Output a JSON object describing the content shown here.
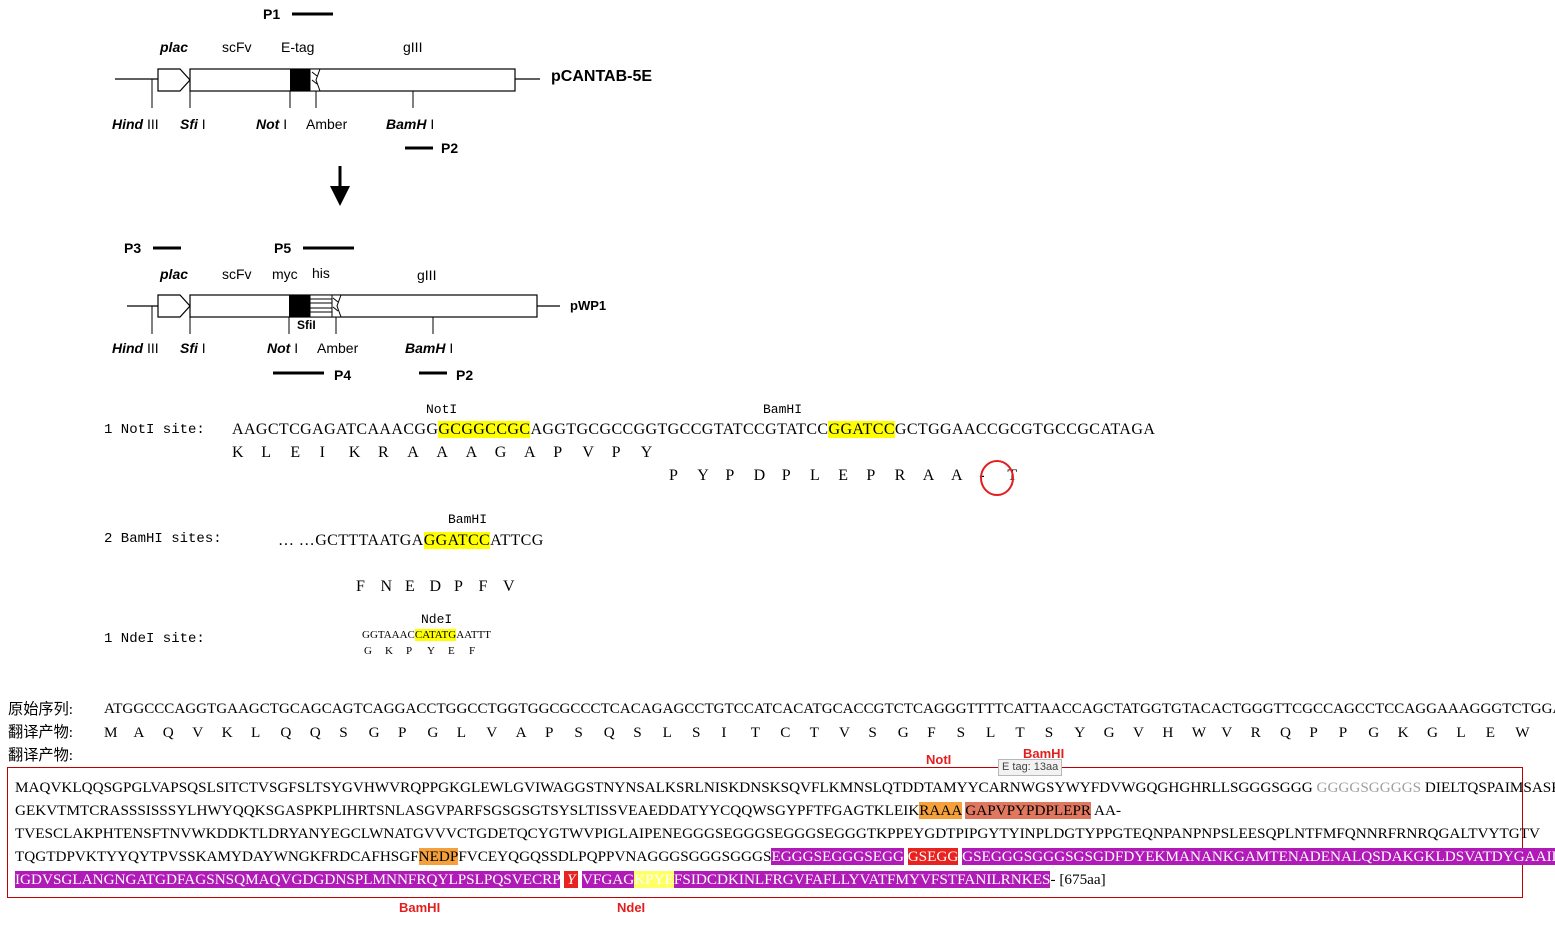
{
  "construct1": {
    "name": "pCANTAB-5E",
    "labels_top": {
      "plac": "plac",
      "scfv": "scFv",
      "etag": "E-tag",
      "g3": "gIII",
      "p1": "P1"
    },
    "labels_bottom": {
      "hind": "Hind",
      "hind_num": "III",
      "sfi": "Sfi",
      "sfi_num": "I",
      "not": "Not",
      "not_num": "I",
      "amber": "Amber",
      "bam": "BamH",
      "bam_num": "I",
      "p2": "P2"
    }
  },
  "construct2": {
    "name": "pWP1",
    "labels_top": {
      "p3": "P3",
      "p5": "P5",
      "plac": "plac",
      "scfv": "scFv",
      "myc": "myc",
      "his": "his",
      "g3": "gIII"
    },
    "labels_bottom": {
      "sfil_inside": "SfiI",
      "hind": "Hind",
      "hind_num": "III",
      "sfi": "Sfi",
      "sfi_num": "I",
      "not": "Not",
      "not_num": "I",
      "amber": "Amber",
      "bam": "BamH",
      "bam_num": "I",
      "p4": "P4",
      "p2": "P2"
    }
  },
  "sites": {
    "notl": {
      "label": "1 NotI site:",
      "enzyme1": "NotI",
      "enzyme2": "BamHI",
      "seq_pre": "AAGCTCGAGATCAAACGG",
      "seq_hl1": "GCGGCCGC",
      "seq_mid": "AGGTGCGCCGGTGCCGTATCCGTATCC",
      "seq_hl2": "GGATCC",
      "seq_post": "GCTGGAACCGCGTGCCGCATAGA",
      "aa1": [
        "K",
        "L",
        "E",
        "I",
        "K",
        "R",
        "A",
        "A",
        "A",
        "G",
        "A",
        "P",
        "V",
        "P",
        "Y"
      ],
      "aa2": [
        "P",
        "Y",
        "P",
        "D",
        "P",
        "L",
        "E",
        "P",
        "R",
        "A",
        "A",
        "-",
        "T"
      ]
    },
    "bamhi": {
      "label": "2 BamHI sites:",
      "enzyme": "BamHI",
      "seq_pre": "… …GCTTTAATGA",
      "seq_hl": "GGATCC",
      "seq_post": "ATTCG",
      "aa": [
        "F",
        "N",
        "E",
        "D",
        "P",
        "F",
        "V"
      ]
    },
    "ndel": {
      "label": "1 NdeI site:",
      "enzyme": "NdeI",
      "seq_pre": "GGTAAAC",
      "seq_hl": "CATATG",
      "seq_post": "AATTT",
      "aa": [
        "G",
        "K",
        "P",
        "Y",
        "E",
        "F"
      ]
    }
  },
  "orig": {
    "label_seq": "原始序列:",
    "seq": "ATGGCCCAGGTGAAGCTGCAGCAGTCAGGACCTGGCCTGGTGGCGCCCTCACAGAGCCTGTCCATCACATGCACCGTCTCAGGGTTTTCATTAACCAGCTATGGTGTACACTGGGTTCGCCAGCCTCCAGGAAAGGGTCTGGAGTGG",
    "label_trans1": "翻译产物:",
    "trans": [
      "M",
      "A",
      "Q",
      "V",
      "K",
      "L",
      "Q",
      "Q",
      "S",
      "G",
      "P",
      "G",
      "L",
      "V",
      "A",
      "P",
      "S",
      "Q",
      "S",
      "L",
      "S",
      "I",
      "T",
      "C",
      "T",
      "V",
      "S",
      "G",
      "F",
      "S",
      "L",
      "T",
      "S",
      "Y",
      "G",
      "V",
      "H",
      "W",
      "V",
      "R",
      "Q",
      "P",
      "P",
      "G",
      "K",
      "G",
      "L",
      "E",
      "W"
    ],
    "label_trans2": "翻译产物:"
  },
  "protein": {
    "notl_label": "NotI",
    "bamhi_top_label": "BamHI",
    "tooltip": "E tag: 13aa",
    "line1_a": "MAQVKLQQSGPGLVAPSQSLSITCTVSGFSLTSYGVHWVRQPPGKGLEWLGVIWAGGSTNYNSALKSRLNISKDNSKSQVFLKMNSLQTDDTAMYYCARNWGSYWYFDVWGQGHGHRLLSGGGSGGG",
    "line1_grey": "GGGGSGGGGS",
    "line1_b": "DIELTQSPAIMSASP",
    "line2_a": "GEKVTMTCRASSSISSSYLHWYQQKSGASPKPLIHRTSNLASGVPARFSGSGSGTSYSLTISSVEAEDDATYYCQQWSGYPFTFGAGTKLEIK",
    "line2_orange": "RAAA",
    "line2_salmon": "GAPVPYPDPLEPR",
    "line2_b": "AA-",
    "line3": "TVESCLAKPHTENSFTNVWKDDKTLDRYANYEGCLWNATGVVVCTGDETQCYGTWVPIGLAIPENEGGGSEGGGSEGGGSEGGGTKPPEYGDTPIPGYTYINPLDGTYPPGTEQNPANPNPSLEESQPLNTFMFQNNRFRNRQGALTVYTGTV",
    "line4_a": "TQGTDPVKTYYQYTPVSSKAMYDAYWNGKFRDCAFHSGF",
    "line4_orange": "NEDP",
    "line4_b": "FVCEYQGQSSDLPQPPVNAGGGSGGGSGGGS",
    "line4_mag": "EGGGSEGGGSEGG",
    "line4_red": "GSEGG",
    "line4_mag2": "GSEGGGSGGGSGSGDFDYEKMANANKGAMTENADENALQSDAKGKLDSVATDYGAAIDGF",
    "line5_mag": "IGDVSGLANGNGATGDFAGSNSQMAQVGDGDNSPLMNNFRQYLPSLPQSVECRP",
    "line5_red": "Y",
    "line5_mag2": "VFGAG",
    "line5_yel": "KPYE",
    "line5_mag3": "FSIDCDKINLFRGVFAFLLYVATFMYVFSTFANILRNKES",
    "line5_end": "- [675aa]",
    "bamhi_label": "BamHI",
    "ndel_label": "NdeI"
  }
}
